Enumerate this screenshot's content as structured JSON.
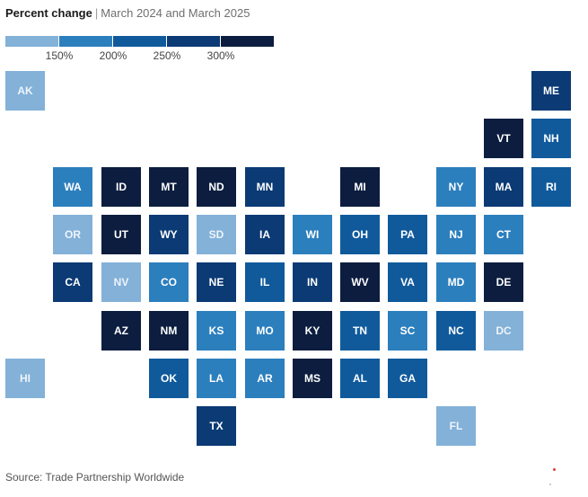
{
  "header": {
    "title": "Percent change",
    "separator": "|",
    "subtitle": "March 2024 and March 2025"
  },
  "legend": {
    "colors": [
      "#83b1d8",
      "#2c7fbd",
      "#105a9c",
      "#0b3a74",
      "#0c1d3f"
    ],
    "labels": [
      "150%",
      "200%",
      "250%",
      "300%"
    ]
  },
  "map": {
    "states": [
      {
        "abbr": "AK",
        "bucket": 0,
        "col": 0,
        "row": 0
      },
      {
        "abbr": "ME",
        "bucket": 3,
        "col": 11,
        "row": 0
      },
      {
        "abbr": "VT",
        "bucket": 4,
        "col": 10,
        "row": 1
      },
      {
        "abbr": "NH",
        "bucket": 2,
        "col": 11,
        "row": 1
      },
      {
        "abbr": "WA",
        "bucket": 1,
        "col": 1,
        "row": 2
      },
      {
        "abbr": "ID",
        "bucket": 4,
        "col": 2,
        "row": 2
      },
      {
        "abbr": "MT",
        "bucket": 4,
        "col": 3,
        "row": 2
      },
      {
        "abbr": "ND",
        "bucket": 4,
        "col": 4,
        "row": 2
      },
      {
        "abbr": "MN",
        "bucket": 3,
        "col": 5,
        "row": 2
      },
      {
        "abbr": "MI",
        "bucket": 4,
        "col": 7,
        "row": 2
      },
      {
        "abbr": "NY",
        "bucket": 1,
        "col": 9,
        "row": 2
      },
      {
        "abbr": "MA",
        "bucket": 3,
        "col": 10,
        "row": 2
      },
      {
        "abbr": "RI",
        "bucket": 2,
        "col": 11,
        "row": 2
      },
      {
        "abbr": "OR",
        "bucket": 0,
        "col": 1,
        "row": 3
      },
      {
        "abbr": "UT",
        "bucket": 4,
        "col": 2,
        "row": 3
      },
      {
        "abbr": "WY",
        "bucket": 3,
        "col": 3,
        "row": 3
      },
      {
        "abbr": "SD",
        "bucket": 0,
        "col": 4,
        "row": 3
      },
      {
        "abbr": "IA",
        "bucket": 3,
        "col": 5,
        "row": 3
      },
      {
        "abbr": "WI",
        "bucket": 1,
        "col": 6,
        "row": 3
      },
      {
        "abbr": "OH",
        "bucket": 2,
        "col": 7,
        "row": 3
      },
      {
        "abbr": "PA",
        "bucket": 2,
        "col": 8,
        "row": 3
      },
      {
        "abbr": "NJ",
        "bucket": 1,
        "col": 9,
        "row": 3
      },
      {
        "abbr": "CT",
        "bucket": 1,
        "col": 10,
        "row": 3
      },
      {
        "abbr": "CA",
        "bucket": 3,
        "col": 1,
        "row": 4
      },
      {
        "abbr": "NV",
        "bucket": 0,
        "col": 2,
        "row": 4
      },
      {
        "abbr": "CO",
        "bucket": 1,
        "col": 3,
        "row": 4
      },
      {
        "abbr": "NE",
        "bucket": 3,
        "col": 4,
        "row": 4
      },
      {
        "abbr": "IL",
        "bucket": 2,
        "col": 5,
        "row": 4
      },
      {
        "abbr": "IN",
        "bucket": 3,
        "col": 6,
        "row": 4
      },
      {
        "abbr": "WV",
        "bucket": 4,
        "col": 7,
        "row": 4
      },
      {
        "abbr": "VA",
        "bucket": 2,
        "col": 8,
        "row": 4
      },
      {
        "abbr": "MD",
        "bucket": 1,
        "col": 9,
        "row": 4
      },
      {
        "abbr": "DE",
        "bucket": 4,
        "col": 10,
        "row": 4
      },
      {
        "abbr": "AZ",
        "bucket": 4,
        "col": 2,
        "row": 5
      },
      {
        "abbr": "NM",
        "bucket": 4,
        "col": 3,
        "row": 5
      },
      {
        "abbr": "KS",
        "bucket": 1,
        "col": 4,
        "row": 5
      },
      {
        "abbr": "MO",
        "bucket": 1,
        "col": 5,
        "row": 5
      },
      {
        "abbr": "KY",
        "bucket": 4,
        "col": 6,
        "row": 5
      },
      {
        "abbr": "TN",
        "bucket": 2,
        "col": 7,
        "row": 5
      },
      {
        "abbr": "SC",
        "bucket": 1,
        "col": 8,
        "row": 5
      },
      {
        "abbr": "NC",
        "bucket": 2,
        "col": 9,
        "row": 5
      },
      {
        "abbr": "DC",
        "bucket": 0,
        "col": 10,
        "row": 5
      },
      {
        "abbr": "HI",
        "bucket": 0,
        "col": 0,
        "row": 6
      },
      {
        "abbr": "OK",
        "bucket": 2,
        "col": 3,
        "row": 6
      },
      {
        "abbr": "LA",
        "bucket": 1,
        "col": 4,
        "row": 6
      },
      {
        "abbr": "AR",
        "bucket": 1,
        "col": 5,
        "row": 6
      },
      {
        "abbr": "MS",
        "bucket": 4,
        "col": 6,
        "row": 6
      },
      {
        "abbr": "AL",
        "bucket": 2,
        "col": 7,
        "row": 6
      },
      {
        "abbr": "GA",
        "bucket": 2,
        "col": 8,
        "row": 6
      },
      {
        "abbr": "TX",
        "bucket": 3,
        "col": 4,
        "row": 7
      },
      {
        "abbr": "FL",
        "bucket": 0,
        "col": 9,
        "row": 7
      }
    ]
  },
  "footer": {
    "source": "Source: Trade Partnership Worldwide"
  }
}
